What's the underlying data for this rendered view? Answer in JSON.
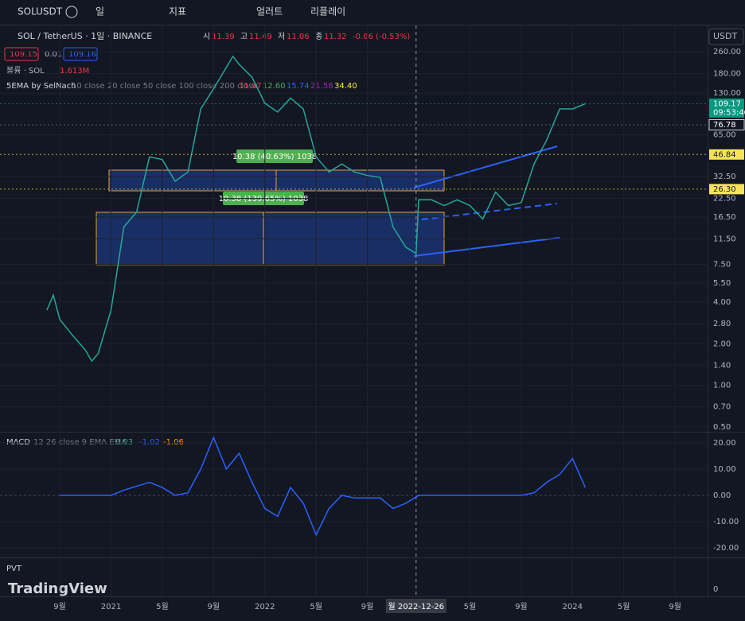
{
  "toolbar": {
    "symbol": "SOLUSDT",
    "interval": "일",
    "indicators": "지표",
    "alert": "얼러트",
    "replay": "리플레이"
  },
  "legend": {
    "title": "SOL / TetherUS · 1일 · BINANCE",
    "ohlc": [
      {
        "key": "시",
        "value": "11.39"
      },
      {
        "key": "고",
        "value": "11.49"
      },
      {
        "key": "저",
        "value": "11.06"
      },
      {
        "key": "종",
        "value": "11.32"
      }
    ],
    "change": "-0.06 (-0.53%)",
    "bid": "109.15",
    "spread": "0.01",
    "ask": "109.16"
  },
  "volume": {
    "name": "볼륨 · SOL",
    "value": "1.613M"
  },
  "ema": {
    "name": "5EMA by SelNach",
    "params": "10 close 20 close 50 close 100 close 200 close",
    "values": [
      {
        "label": "11.97",
        "color": "#f23645"
      },
      {
        "label": "12.60",
        "color": "#4caf50"
      },
      {
        "label": "15.74",
        "color": "#2962ff"
      },
      {
        "label": "21.58",
        "color": "#9c27b0"
      },
      {
        "label": "34.40",
        "color": "#ffeb3b"
      }
    ]
  },
  "currency": "USDT",
  "price_chart": {
    "type": "line",
    "log": true,
    "color": "#26a69a",
    "x": [
      -1,
      -0.5,
      0,
      1,
      2,
      2.5,
      3,
      4,
      5,
      6,
      7,
      8,
      9,
      10,
      11,
      12,
      13,
      13.5,
      14,
      15,
      16,
      17,
      18,
      19,
      20,
      21,
      22,
      23,
      24,
      25,
      26,
      27,
      27.8,
      28,
      29,
      30,
      31,
      32,
      33,
      34,
      35,
      36,
      37,
      38,
      39,
      40,
      41
    ],
    "values": [
      3.5,
      4.5,
      3,
      2.3,
      1.8,
      1.5,
      1.7,
      3.5,
      14,
      18,
      45,
      43,
      30,
      35,
      100,
      140,
      200,
      240,
      210,
      170,
      110,
      95,
      120,
      100,
      45,
      35,
      40,
      35,
      33,
      32,
      14,
      10,
      9,
      22,
      22,
      20,
      22,
      20,
      16,
      25,
      20,
      21,
      40,
      60,
      100,
      100,
      109.17
    ],
    "xlim": [
      -4.66,
      50.6
    ],
    "ylim": [
      0.468,
      402
    ],
    "yticks": [
      {
        "value": 260,
        "label": "260.00"
      },
      {
        "value": 180,
        "label": "180.00"
      },
      {
        "value": 130,
        "label": "130.00"
      },
      {
        "value": 65,
        "label": "65.00"
      },
      {
        "value": 32.5,
        "label": "32.50"
      },
      {
        "value": 22.5,
        "label": "22.50"
      },
      {
        "value": 16.5,
        "label": "16.50"
      },
      {
        "value": 11.5,
        "label": "11.50"
      },
      {
        "value": 7.5,
        "label": "7.50"
      },
      {
        "value": 5.5,
        "label": "5.50"
      },
      {
        "value": 4,
        "label": "4.00"
      },
      {
        "value": 2.8,
        "label": "2.80"
      },
      {
        "value": 2,
        "label": "2.00"
      },
      {
        "value": 1.4,
        "label": "1.40"
      },
      {
        "value": 1,
        "label": "1.00"
      },
      {
        "value": 0.7,
        "label": "0.70"
      },
      {
        "value": 0.5,
        "label": "0.50"
      }
    ],
    "xticks": [
      {
        "value": 0,
        "label": "9월"
      },
      {
        "value": 4,
        "label": "2021"
      },
      {
        "value": 8,
        "label": "5월"
      },
      {
        "value": 12,
        "label": "9월"
      },
      {
        "value": 16,
        "label": "2022"
      },
      {
        "value": 20,
        "label": "5월"
      },
      {
        "value": 24,
        "label": "9월"
      },
      {
        "value": 32,
        "label": "5월"
      },
      {
        "value": 36,
        "label": "9월"
      },
      {
        "value": 40,
        "label": "2024"
      },
      {
        "value": 44,
        "label": "5월"
      },
      {
        "value": 48,
        "label": "9월"
      }
    ],
    "crosshair": {
      "value": 27.8,
      "label": "월 2022-12-26"
    },
    "price_labels": [
      {
        "value": 109.17,
        "label": "109.17",
        "countdown": "09:53:46",
        "color": "#089981"
      },
      {
        "value": 76.78,
        "label": "76.78",
        "color": "#131722"
      },
      {
        "value": 46.84,
        "label": "46.84",
        "color": "#f7e35a"
      },
      {
        "value": 26.3,
        "label": "26.30",
        "color": "#f7e35a"
      }
    ],
    "annotations": [
      "10.38 (40.63%) 1038",
      "10.38 (139.65%) 1038"
    ]
  },
  "macd": {
    "type": "line",
    "name": "MACD",
    "params": "12 26 close 9 EMA EMA",
    "readings": [
      {
        "label": "0.03",
        "color": "#26a69a"
      },
      {
        "label": "-1.02",
        "color": "#2962ff"
      },
      {
        "label": "-1.06",
        "color": "#ff9800"
      }
    ],
    "color": "#2962ff",
    "x": [
      0,
      4,
      5,
      7,
      8,
      9,
      10,
      11,
      12,
      13,
      14,
      15,
      16,
      17,
      18,
      19,
      20,
      21,
      22,
      23,
      24,
      25,
      26,
      27,
      28,
      30,
      32,
      34,
      36,
      37,
      38,
      39,
      40,
      41
    ],
    "values": [
      0,
      0,
      2,
      5,
      3,
      0,
      1,
      10,
      22,
      10,
      16,
      5,
      -5,
      -8,
      3,
      -3,
      -15,
      -5,
      0,
      -1,
      -1,
      -1,
      -5,
      -3,
      0,
      0,
      0,
      0,
      0,
      1,
      5,
      8,
      14,
      3
    ],
    "ylim": [
      -23.3,
      23.6
    ],
    "yticks": [
      {
        "value": 20,
        "label": "20.00"
      },
      {
        "value": 10,
        "label": "10.00"
      },
      {
        "value": 0,
        "label": "0.00"
      },
      {
        "value": -10,
        "label": "-10.00"
      },
      {
        "value": -20,
        "label": "-20.00"
      }
    ]
  },
  "pvt": {
    "name": "PVT",
    "yticks": [
      0
    ]
  },
  "brand": "TradingView"
}
